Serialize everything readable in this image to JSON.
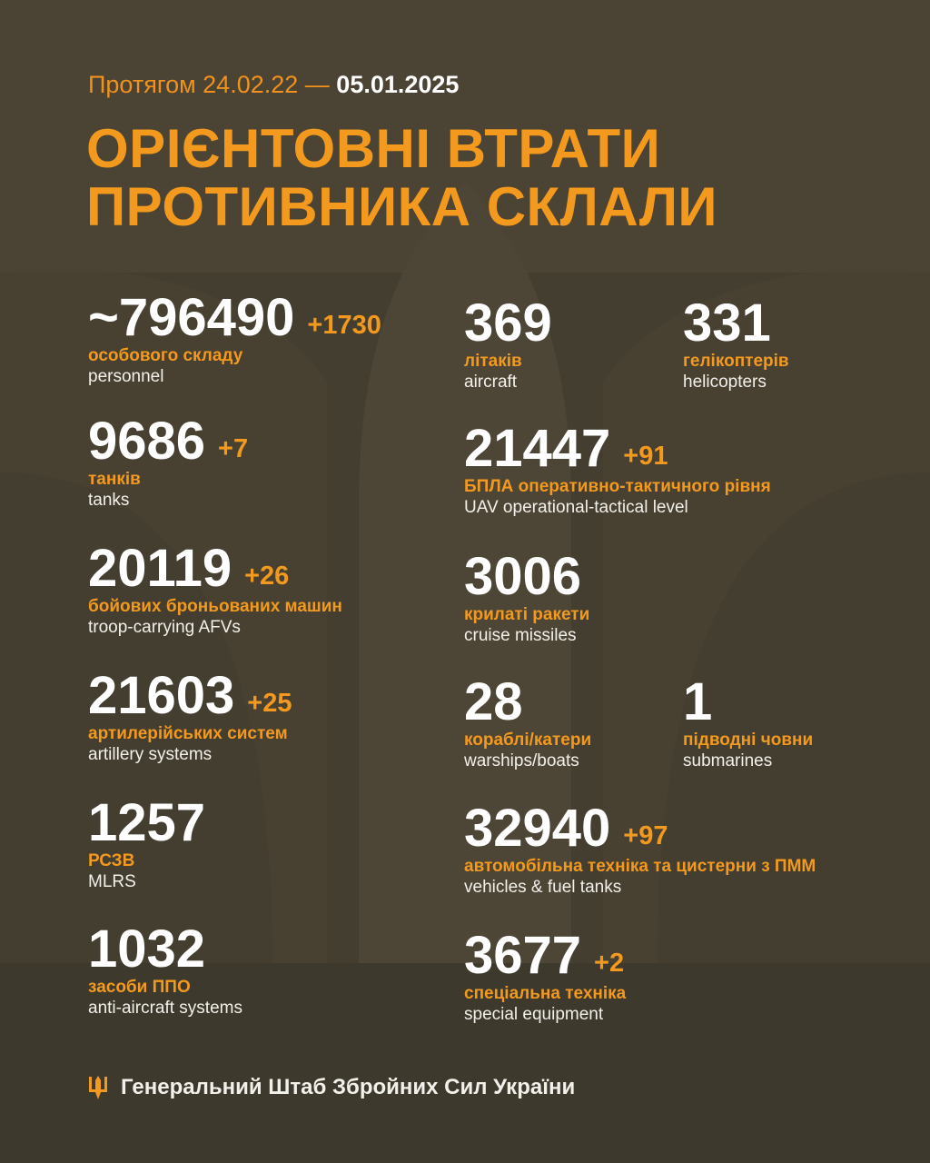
{
  "header": {
    "period_prefix": "Протягом 24.02.22 —",
    "period_end": "05.01.2025",
    "title_line1": "ОРІЄНТОВНІ ВТРАТИ",
    "title_line2": "ПРОТИВНИКА СКЛАЛИ"
  },
  "colors": {
    "background": "#443e30",
    "accent": "#f39a1e",
    "text": "#ffffff"
  },
  "stats": {
    "personnel": {
      "value": "~796490",
      "delta": "+1730",
      "ua": "особового складу",
      "en": "personnel"
    },
    "tanks": {
      "value": "9686",
      "delta": "+7",
      "ua": "танків",
      "en": "tanks"
    },
    "afv": {
      "value": "20119",
      "delta": "+26",
      "ua": "бойових броньованих машин",
      "en": "troop-carrying AFVs"
    },
    "artillery": {
      "value": "21603",
      "delta": "+25",
      "ua": "артилерійських систем",
      "en": "artillery systems"
    },
    "mlrs": {
      "value": "1257",
      "ua": "РСЗВ",
      "en": "MLRS"
    },
    "antiair": {
      "value": "1032",
      "ua": "засоби ППО",
      "en": "anti-aircraft systems"
    },
    "aircraft": {
      "value": "369",
      "ua": "літаків",
      "en": "aircraft"
    },
    "helicopters": {
      "value": "331",
      "ua": "гелікоптерів",
      "en": "helicopters"
    },
    "uav": {
      "value": "21447",
      "delta": "+91",
      "ua": "БПЛА оперативно-тактичного рівня",
      "en": "UAV operational-tactical level"
    },
    "missiles": {
      "value": "3006",
      "ua": "крилаті ракети",
      "en": "cruise missiles"
    },
    "warships": {
      "value": "28",
      "ua": "кораблі/катери",
      "en": "warships/boats"
    },
    "submarines": {
      "value": "1",
      "ua": "підводні човни",
      "en": "submarines"
    },
    "vehicles": {
      "value": "32940",
      "delta": "+97",
      "ua": "автомобільна техніка та цистерни з ПММ",
      "en": "vehicles & fuel tanks"
    },
    "special": {
      "value": "3677",
      "delta": "+2",
      "ua": "спеціальна техніка",
      "en": "special equipment"
    }
  },
  "footer": {
    "icon": "trident-icon",
    "text": "Генеральний Штаб Збройних Сил України"
  }
}
